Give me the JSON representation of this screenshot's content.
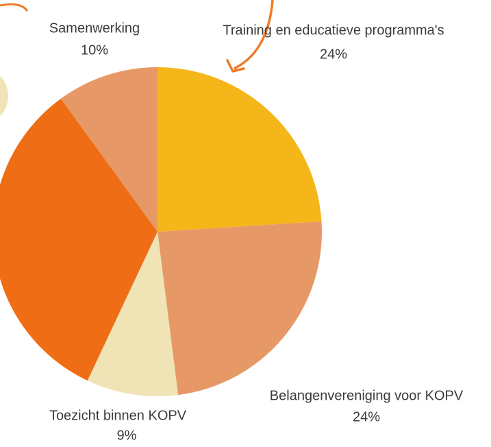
{
  "chart_data": {
    "type": "pie",
    "categories": [
      "Training en educatieve programma's",
      "Belangenvereniging voor KOPV",
      "Toezicht binnen KOPV",
      null,
      "Samenwerking"
    ],
    "values": [
      24,
      24,
      9,
      33,
      10
    ],
    "value_labels": [
      "24%",
      "24%",
      "9%",
      null,
      "10%"
    ],
    "colors": [
      "#f5b619",
      "#e69966",
      "#f0e3b6",
      "#ef6e15",
      "#e69966"
    ]
  }
}
